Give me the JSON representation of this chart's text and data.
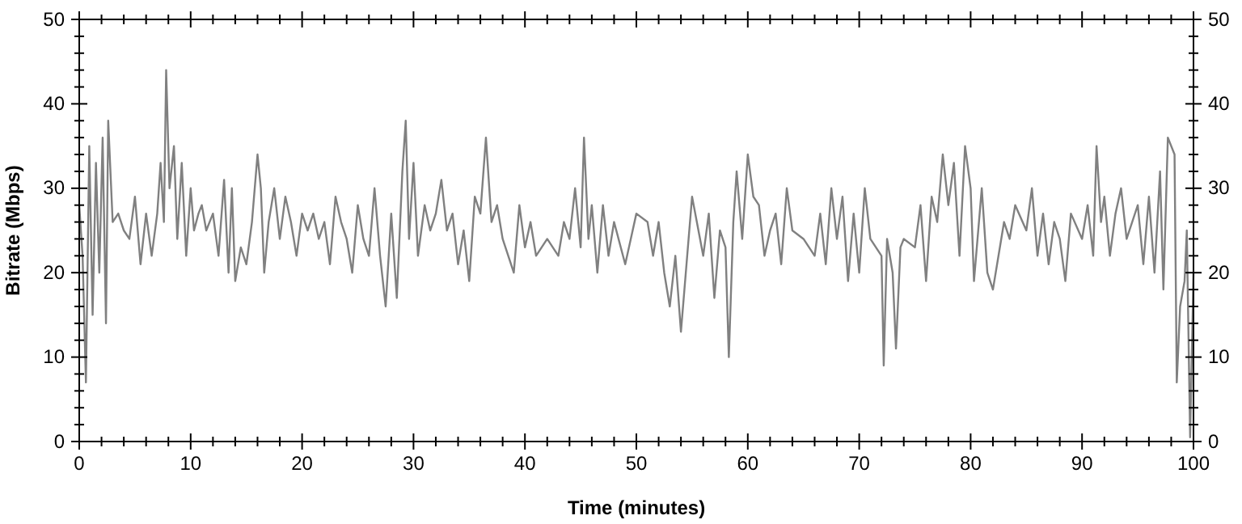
{
  "chart_data": {
    "type": "line",
    "xlabel": "Time (minutes)",
    "ylabel": "Bitrate (Mbps)",
    "xlim": [
      0,
      100
    ],
    "ylim": [
      0,
      50
    ],
    "y2lim": [
      0,
      50
    ],
    "xticks": [
      0,
      {
        "value": 2,
        "label": null
      },
      {
        "value": 4,
        "label": null
      },
      {
        "value": 6,
        "label": null
      },
      {
        "value": 8,
        "label": null
      },
      10,
      {
        "value": 12,
        "label": null
      },
      {
        "value": 14,
        "label": null
      },
      {
        "value": 16,
        "label": null
      },
      {
        "value": 18,
        "label": null
      },
      20,
      {
        "value": 22,
        "label": null
      },
      {
        "value": 24,
        "label": null
      },
      {
        "value": 26,
        "label": null
      },
      {
        "value": 28,
        "label": null
      },
      30,
      {
        "value": 32,
        "label": null
      },
      {
        "value": 34,
        "label": null
      },
      {
        "value": 36,
        "label": null
      },
      {
        "value": 38,
        "label": null
      },
      40,
      {
        "value": 42,
        "label": null
      },
      {
        "value": 44,
        "label": null
      },
      {
        "value": 46,
        "label": null
      },
      {
        "value": 48,
        "label": null
      },
      50,
      {
        "value": 52,
        "label": null
      },
      {
        "value": 54,
        "label": null
      },
      {
        "value": 56,
        "label": null
      },
      {
        "value": 58,
        "label": null
      },
      60,
      {
        "value": 62,
        "label": null
      },
      {
        "value": 64,
        "label": null
      },
      {
        "value": 66,
        "label": null
      },
      {
        "value": 68,
        "label": null
      },
      70,
      {
        "value": 72,
        "label": null
      },
      {
        "value": 74,
        "label": null
      },
      {
        "value": 76,
        "label": null
      },
      {
        "value": 78,
        "label": null
      },
      80,
      {
        "value": 82,
        "label": null
      },
      {
        "value": 84,
        "label": null
      },
      {
        "value": 86,
        "label": null
      },
      {
        "value": 88,
        "label": null
      },
      90,
      {
        "value": 92,
        "label": null
      },
      {
        "value": 94,
        "label": null
      },
      {
        "value": 96,
        "label": null
      },
      {
        "value": 98,
        "label": null
      },
      100
    ],
    "yticks": [
      0,
      {
        "value": 2,
        "label": null
      },
      {
        "value": 4,
        "label": null
      },
      {
        "value": 6,
        "label": null
      },
      {
        "value": 8,
        "label": null
      },
      10,
      {
        "value": 12,
        "label": null
      },
      {
        "value": 14,
        "label": null
      },
      {
        "value": 16,
        "label": null
      },
      {
        "value": 18,
        "label": null
      },
      20,
      {
        "value": 22,
        "label": null
      },
      {
        "value": 24,
        "label": null
      },
      {
        "value": 26,
        "label": null
      },
      {
        "value": 28,
        "label": null
      },
      30,
      {
        "value": 32,
        "label": null
      },
      {
        "value": 34,
        "label": null
      },
      {
        "value": 36,
        "label": null
      },
      {
        "value": 38,
        "label": null
      },
      40,
      {
        "value": 42,
        "label": null
      },
      {
        "value": 44,
        "label": null
      },
      {
        "value": 46,
        "label": null
      },
      {
        "value": 48,
        "label": null
      },
      50
    ],
    "y2ticks": [
      0,
      {
        "value": 2,
        "label": null
      },
      {
        "value": 4,
        "label": null
      },
      {
        "value": 6,
        "label": null
      },
      {
        "value": 8,
        "label": null
      },
      10,
      {
        "value": 12,
        "label": null
      },
      {
        "value": 14,
        "label": null
      },
      {
        "value": 16,
        "label": null
      },
      {
        "value": 18,
        "label": null
      },
      20,
      {
        "value": 22,
        "label": null
      },
      {
        "value": 24,
        "label": null
      },
      {
        "value": 26,
        "label": null
      },
      {
        "value": 28,
        "label": null
      },
      30,
      {
        "value": 32,
        "label": null
      },
      {
        "value": 34,
        "label": null
      },
      {
        "value": 36,
        "label": null
      },
      {
        "value": 38,
        "label": null
      },
      40,
      {
        "value": 42,
        "label": null
      },
      {
        "value": 44,
        "label": null
      },
      {
        "value": 46,
        "label": null
      },
      {
        "value": 48,
        "label": null
      },
      50
    ],
    "grid": false,
    "series": [
      {
        "color": "#808080",
        "x": [
          0,
          0.3,
          0.6,
          0.9,
          1.2,
          1.5,
          1.8,
          2.1,
          2.4,
          2.6,
          3,
          3.5,
          4,
          4.5,
          5,
          5.5,
          6,
          6.5,
          7,
          7.3,
          7.6,
          7.8,
          8.1,
          8.5,
          8.8,
          9.2,
          9.6,
          10,
          10.3,
          10.7,
          11,
          11.4,
          12,
          12.5,
          13,
          13.4,
          13.7,
          14,
          14.5,
          15,
          15.5,
          16,
          16.3,
          16.6,
          17,
          17.5,
          18,
          18.5,
          19,
          19.5,
          20,
          20.5,
          21,
          21.5,
          22,
          22.5,
          23,
          23.5,
          24,
          24.5,
          25,
          25.5,
          26,
          26.5,
          27,
          27.5,
          28,
          28.5,
          29,
          29.3,
          29.6,
          30,
          30.4,
          31,
          31.5,
          32,
          32.5,
          33,
          33.5,
          34,
          34.5,
          35,
          35.5,
          36,
          36.5,
          37,
          37.5,
          38,
          39,
          39.5,
          40,
          40.5,
          41,
          42,
          43,
          43.5,
          44,
          44.5,
          45,
          45.3,
          45.7,
          46,
          46.5,
          47,
          47.5,
          48,
          49,
          49.5,
          50,
          51,
          51.5,
          52,
          52.5,
          53,
          53.5,
          54,
          54.5,
          55,
          56,
          56.5,
          57,
          57.5,
          58,
          58.3,
          58.7,
          59,
          59.5,
          60,
          60.5,
          61,
          61.5,
          62,
          62.5,
          63,
          63.5,
          64,
          65,
          66,
          66.5,
          67,
          67.5,
          68,
          68.5,
          69,
          69.5,
          70,
          70.5,
          71,
          72,
          72.2,
          72.5,
          73,
          73.3,
          73.7,
          74,
          75,
          75.5,
          76,
          76.5,
          77,
          77.5,
          78,
          78.5,
          79,
          79.5,
          80,
          80.3,
          81,
          81.5,
          82,
          82.5,
          83,
          83.5,
          84,
          85,
          85.5,
          86,
          86.5,
          87,
          87.5,
          88,
          88.5,
          89,
          90,
          90.5,
          91,
          91.3,
          91.7,
          92,
          92.5,
          93,
          93.5,
          94,
          95,
          95.5,
          96,
          96.5,
          97,
          97.3,
          97.7,
          98.3,
          98.5,
          98.8,
          99.2,
          99.4,
          99.7,
          100
        ],
        "values": [
          28,
          22,
          7,
          35,
          15,
          33,
          20,
          36,
          14,
          38,
          26,
          27,
          25,
          24,
          29,
          21,
          27,
          22,
          27,
          33,
          26,
          44,
          30,
          35,
          24,
          33,
          22,
          30,
          25,
          27,
          28,
          25,
          27,
          22,
          31,
          20,
          30,
          19,
          23,
          21,
          26,
          34,
          30,
          20,
          26,
          30,
          24,
          29,
          26,
          22,
          27,
          25,
          27,
          24,
          26,
          21,
          29,
          26,
          24,
          20,
          28,
          24,
          22,
          30,
          22,
          16,
          27,
          17,
          32,
          38,
          24,
          33,
          22,
          28,
          25,
          27,
          31,
          25,
          27,
          21,
          25,
          19,
          29,
          27,
          36,
          26,
          28,
          24,
          20,
          28,
          23,
          26,
          22,
          24,
          22,
          26,
          24,
          30,
          23,
          36,
          24,
          28,
          20,
          28,
          22,
          26,
          21,
          24,
          27,
          26,
          22,
          26,
          20,
          16,
          22,
          13,
          21,
          29,
          22,
          27,
          17,
          25,
          23,
          10,
          26,
          32,
          24,
          34,
          29,
          28,
          22,
          25,
          27,
          21,
          30,
          25,
          24,
          22,
          27,
          21,
          30,
          24,
          29,
          19,
          27,
          20,
          30,
          24,
          22,
          9,
          24,
          20,
          11,
          23,
          24,
          23,
          28,
          19,
          29,
          26,
          34,
          28,
          33,
          22,
          35,
          30,
          19,
          30,
          20,
          18,
          22,
          26,
          24,
          28,
          25,
          30,
          22,
          27,
          21,
          26,
          24,
          19,
          27,
          24,
          28,
          22,
          35,
          26,
          29,
          22,
          27,
          30,
          24,
          28,
          21,
          29,
          20,
          32,
          18,
          36,
          34,
          7,
          16,
          19,
          25,
          0.5,
          20
        ]
      }
    ]
  }
}
